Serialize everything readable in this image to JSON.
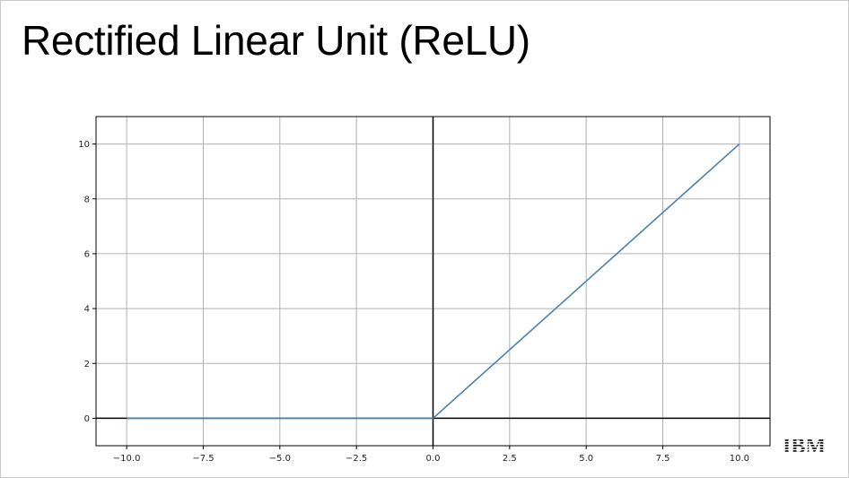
{
  "slide": {
    "title": "Rectified Linear Unit (ReLU)",
    "logo_text": "IBM"
  },
  "chart_data": {
    "type": "line",
    "title": "",
    "xlabel": "",
    "ylabel": "",
    "xlim": [
      -11,
      11
    ],
    "ylim": [
      -1,
      11
    ],
    "grid": true,
    "x_ticks": [
      -10.0,
      -7.5,
      -5.0,
      -2.5,
      0.0,
      2.5,
      5.0,
      7.5,
      10.0
    ],
    "x_tick_labels": [
      "−10.0",
      "−7.5",
      "−5.0",
      "−2.5",
      "0.0",
      "2.5",
      "5.0",
      "7.5",
      "10.0"
    ],
    "y_ticks": [
      0,
      2,
      4,
      6,
      8,
      10
    ],
    "y_tick_labels": [
      "0",
      "2",
      "4",
      "6",
      "8",
      "10"
    ],
    "series": [
      {
        "x": [
          -10,
          0,
          10
        ],
        "y": [
          0,
          0,
          10
        ],
        "color": "#4682b4"
      }
    ],
    "reference_lines": {
      "horizontal_y": 0,
      "vertical_x": 0,
      "color": "#000000"
    }
  }
}
